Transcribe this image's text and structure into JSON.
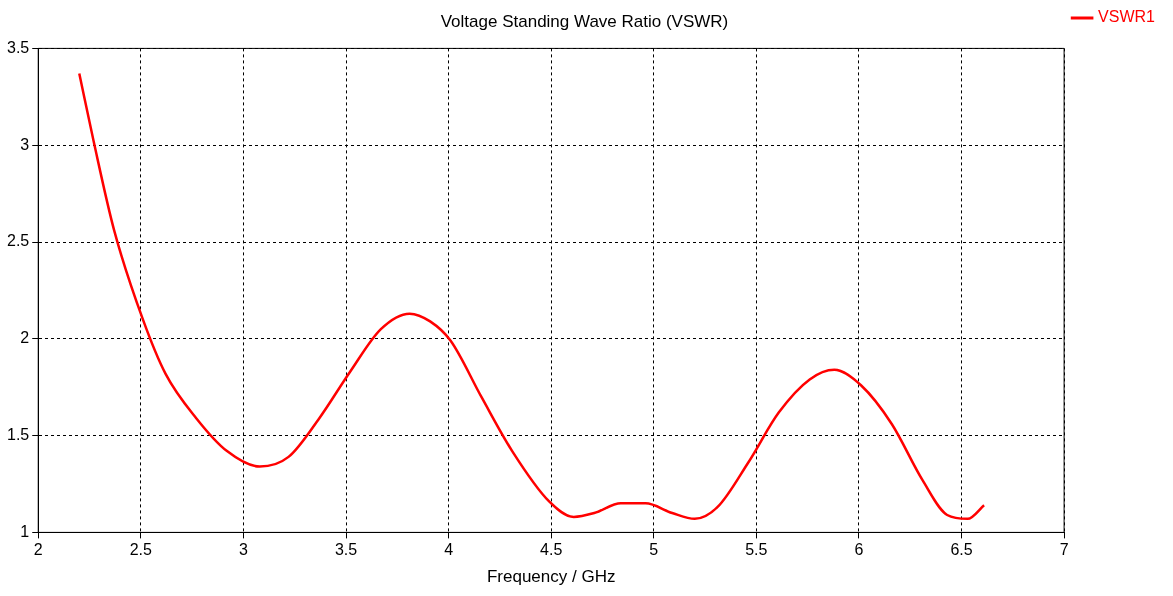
{
  "chart_data": {
    "type": "line",
    "title": "Voltage Standing Wave Ratio (VSWR)",
    "xlabel": "Frequency / GHz",
    "xlim": [
      2,
      7
    ],
    "xticks": [
      2,
      2.5,
      3,
      3.5,
      4,
      4.5,
      5,
      5.5,
      6,
      6.5,
      7
    ],
    "ylim": [
      1,
      3.5
    ],
    "yticks": [
      1,
      1.5,
      2,
      2.5,
      3,
      3.5
    ],
    "grid": true,
    "legend": "top right",
    "marker": "none",
    "line_style": "solid",
    "series": [
      {
        "name": "VSWR1",
        "color": "#ff0000",
        "x": [
          2.2,
          2.27,
          2.37,
          2.51,
          2.62,
          2.77,
          2.92,
          3.08,
          3.22,
          3.37,
          3.52,
          3.67,
          3.81,
          3.91,
          4.01,
          4.16,
          4.31,
          4.49,
          4.61,
          4.71,
          4.84,
          4.96,
          5.09,
          5.2,
          5.31,
          5.46,
          5.61,
          5.76,
          5.88,
          6.01,
          6.16,
          6.31,
          6.43,
          6.53,
          6.61
        ],
        "values": [
          3.37,
          3.02,
          2.56,
          2.1,
          1.82,
          1.59,
          1.42,
          1.34,
          1.39,
          1.59,
          1.83,
          2.05,
          2.13,
          2.09,
          1.99,
          1.7,
          1.42,
          1.16,
          1.08,
          1.1,
          1.15,
          1.15,
          1.1,
          1.07,
          1.13,
          1.36,
          1.62,
          1.79,
          1.84,
          1.76,
          1.56,
          1.27,
          1.09,
          1.07,
          1.14
        ]
      }
    ]
  }
}
